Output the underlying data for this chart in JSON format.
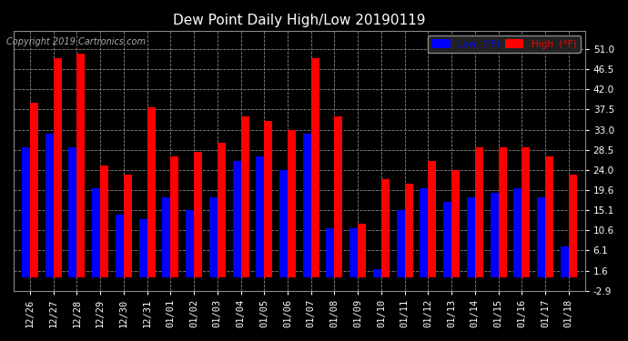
{
  "title": "Dew Point Daily High/Low 20190119",
  "copyright": "Copyright 2019 Cartronics.com",
  "legend_low": "Low  (°F)",
  "legend_high": "High  (°F)",
  "background_color": "#000000",
  "plot_bg_color": "#000000",
  "grid_color": "#888888",
  "low_color": "#0000ff",
  "high_color": "#ff0000",
  "ylim": [
    -2.9,
    55.0
  ],
  "yticks": [
    -2.9,
    1.6,
    6.1,
    10.6,
    15.1,
    19.6,
    24.0,
    28.5,
    33.0,
    37.5,
    42.0,
    46.5,
    51.0
  ],
  "ytick_labels": [
    "-2.9",
    "1.6",
    "6.1",
    "10.6",
    "15.1",
    "19.6",
    "24.0",
    "28.5",
    "33.0",
    "37.5",
    "42.0",
    "46.5",
    "51.0"
  ],
  "dates": [
    "12/26",
    "12/27",
    "12/28",
    "12/29",
    "12/30",
    "12/31",
    "01/01",
    "01/02",
    "01/03",
    "01/04",
    "01/05",
    "01/06",
    "01/07",
    "01/08",
    "01/09",
    "01/10",
    "01/11",
    "01/12",
    "01/13",
    "01/14",
    "01/15",
    "01/16",
    "01/17",
    "01/18"
  ],
  "low_values": [
    29,
    32,
    29,
    20,
    14,
    13,
    18,
    15,
    18,
    26,
    27,
    24,
    32,
    11,
    11,
    2,
    15,
    20,
    17,
    18,
    19,
    20,
    18,
    7
  ],
  "high_values": [
    39,
    49,
    50,
    25,
    23,
    38,
    27,
    28,
    30,
    36,
    35,
    33,
    49,
    36,
    12,
    22,
    21,
    26,
    24,
    29,
    29,
    29,
    27,
    23
  ],
  "bar_width": 0.35,
  "title_color": "#ffffff",
  "tick_color": "#ffffff",
  "spine_color": "#888888"
}
